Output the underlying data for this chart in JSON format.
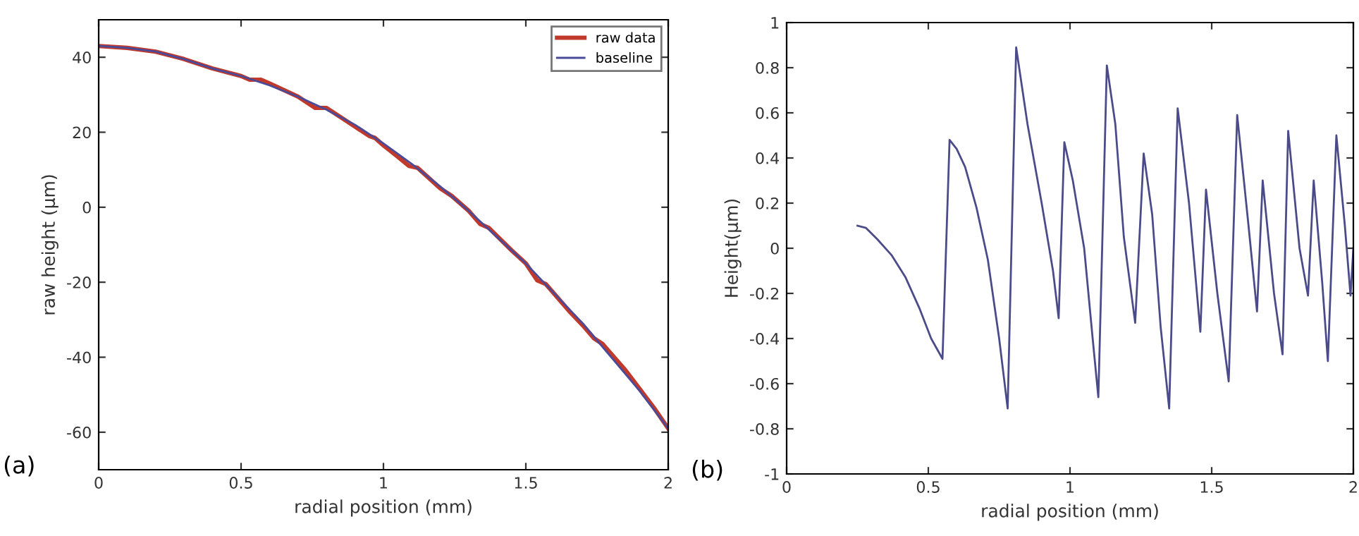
{
  "chart_data": [
    {
      "type": "line",
      "xlabel": "radial position (mm)",
      "ylabel": "raw height (μm)",
      "annotations": [
        "(a)"
      ],
      "xlim": [
        0,
        2
      ],
      "xticks": [
        0,
        0.5,
        1,
        1.5,
        2
      ],
      "ylim": [
        -70,
        50
      ],
      "yticks": [
        -60,
        -40,
        -20,
        0,
        20,
        40
      ],
      "legend": "top right",
      "grid": false,
      "series": [
        {
          "name": "raw data",
          "color": "#c0392b",
          "x": [
            0,
            0.1,
            0.2,
            0.3,
            0.4,
            0.5,
            0.53,
            0.57,
            0.6,
            0.7,
            0.76,
            0.8,
            0.85,
            0.9,
            0.95,
            0.97,
            1.0,
            1.05,
            1.09,
            1.12,
            1.2,
            1.24,
            1.3,
            1.34,
            1.37,
            1.45,
            1.5,
            1.54,
            1.57,
            1.65,
            1.7,
            1.74,
            1.77,
            1.85,
            1.9,
            1.95,
            2.0
          ],
          "values": [
            43,
            42.5,
            41.5,
            39.5,
            37,
            35,
            34,
            34,
            33,
            29.5,
            26.5,
            26.5,
            24,
            21.5,
            19,
            18.5,
            16.5,
            13.5,
            11,
            10.5,
            5,
            3,
            -1,
            -4.5,
            -5.5,
            -11.5,
            -15,
            -19.5,
            -20.5,
            -27.5,
            -31.5,
            -35,
            -36.5,
            -43.5,
            -48.5,
            -53.5,
            -59
          ]
        },
        {
          "name": "baseline",
          "color": "#4a4a9a",
          "x": [
            0,
            0.1,
            0.2,
            0.3,
            0.4,
            0.5,
            0.6,
            0.7,
            0.8,
            0.9,
            1.0,
            1.1,
            1.2,
            1.3,
            1.4,
            1.5,
            1.6,
            1.7,
            1.8,
            1.9,
            2.0
          ],
          "values": [
            43,
            42.5,
            41.5,
            39.5,
            37,
            35,
            32.5,
            29.5,
            26,
            22,
            17,
            11.5,
            5.5,
            -1,
            -8,
            -15,
            -23,
            -31,
            -40,
            -49,
            -59
          ]
        }
      ]
    },
    {
      "type": "line",
      "xlabel": "radial position (mm)",
      "ylabel": "Height(μm)",
      "annotations": [
        "(b)"
      ],
      "xlim": [
        0,
        2
      ],
      "xticks": [
        0,
        0.5,
        1,
        1.5,
        2
      ],
      "ylim": [
        -1,
        1
      ],
      "yticks": [
        -1,
        -0.8,
        -0.6,
        -0.4,
        -0.2,
        0,
        0.2,
        0.4,
        0.6,
        0.8,
        1
      ],
      "grid": false,
      "series": [
        {
          "color": "#4b4b8a",
          "x": [
            0.25,
            0.28,
            0.32,
            0.37,
            0.42,
            0.47,
            0.51,
            0.55,
            0.575,
            0.6,
            0.63,
            0.67,
            0.71,
            0.75,
            0.78,
            0.81,
            0.85,
            0.9,
            0.94,
            0.96,
            0.98,
            1.01,
            1.05,
            1.08,
            1.1,
            1.13,
            1.16,
            1.19,
            1.23,
            1.26,
            1.29,
            1.32,
            1.35,
            1.38,
            1.42,
            1.46,
            1.48,
            1.52,
            1.56,
            1.59,
            1.63,
            1.66,
            1.68,
            1.72,
            1.75,
            1.77,
            1.81,
            1.84,
            1.86,
            1.89,
            1.91,
            1.94,
            1.97,
            1.99,
            2.0
          ],
          "values": [
            0.1,
            0.09,
            0.04,
            -0.03,
            -0.13,
            -0.27,
            -0.4,
            -0.49,
            0.48,
            0.44,
            0.36,
            0.18,
            -0.05,
            -0.4,
            -0.71,
            0.89,
            0.55,
            0.2,
            -0.1,
            -0.31,
            0.47,
            0.3,
            0.0,
            -0.4,
            -0.66,
            0.81,
            0.55,
            0.05,
            -0.33,
            0.42,
            0.15,
            -0.35,
            -0.71,
            0.62,
            0.2,
            -0.37,
            0.26,
            -0.2,
            -0.59,
            0.59,
            0.1,
            -0.28,
            0.3,
            -0.2,
            -0.47,
            0.52,
            0.0,
            -0.21,
            0.3,
            -0.15,
            -0.5,
            0.5,
            0.1,
            -0.21,
            0.0
          ]
        }
      ]
    }
  ]
}
